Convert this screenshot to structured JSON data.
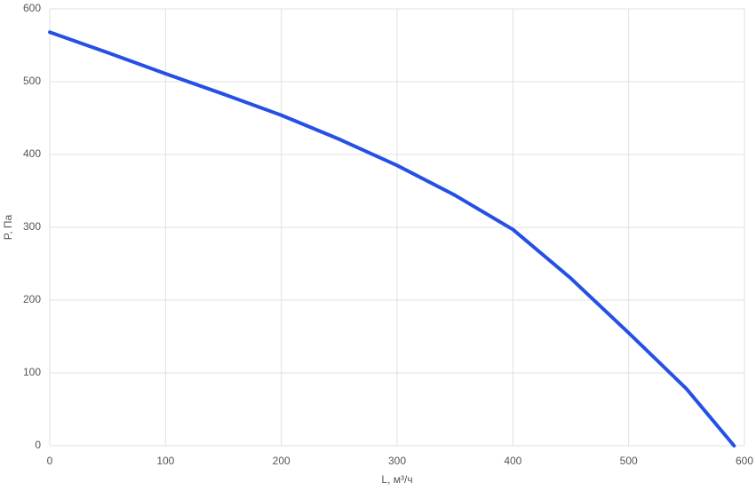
{
  "chart_data": {
    "type": "line",
    "x_label": "L, м³/ч",
    "y_label": "P, Па",
    "x": [
      0,
      50,
      100,
      150,
      200,
      250,
      300,
      350,
      400,
      450,
      500,
      550,
      591
    ],
    "series": [
      {
        "color": "#2550e6",
        "values": [
          568,
          540,
          511,
          483,
          454,
          421,
          385,
          344,
          297,
          230,
          155,
          78,
          0
        ]
      }
    ],
    "xlim": [
      0,
      600
    ],
    "ylim": [
      0,
      600
    ],
    "xticks": [
      0,
      100,
      200,
      300,
      400,
      500,
      600
    ],
    "yticks": [
      0,
      100,
      200,
      300,
      400,
      500,
      600
    ],
    "grid": true
  }
}
